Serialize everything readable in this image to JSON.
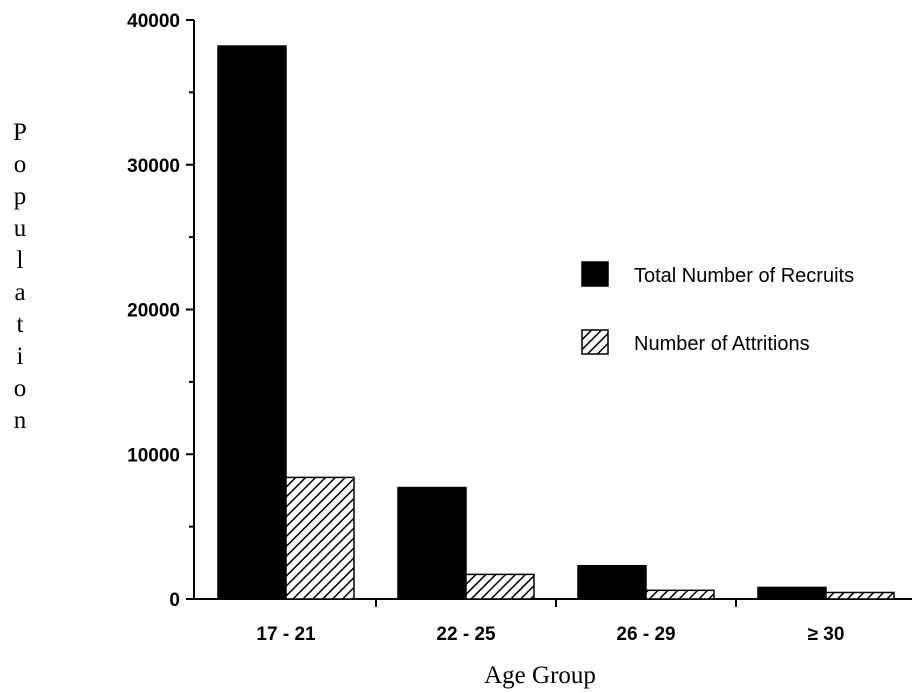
{
  "chart_data": {
    "type": "bar",
    "title": "",
    "xlabel": "Age Group",
    "ylabel": "Population",
    "ylim": [
      0,
      40000
    ],
    "yticks": [
      "0",
      "10000",
      "20000",
      "30000",
      "40000"
    ],
    "categories": [
      "17 - 21",
      "22 - 25",
      "26 - 29",
      "≥ 30"
    ],
    "series": [
      {
        "name": "Total Number of Recruits",
        "values": [
          38200,
          7700,
          2300,
          800
        ],
        "fill": "solid",
        "color": "#000000"
      },
      {
        "name": "Number of Attritions",
        "values": [
          8400,
          1700,
          600,
          450
        ],
        "fill": "hatched",
        "color": "#000000"
      }
    ],
    "legend": "right",
    "grid": false
  }
}
